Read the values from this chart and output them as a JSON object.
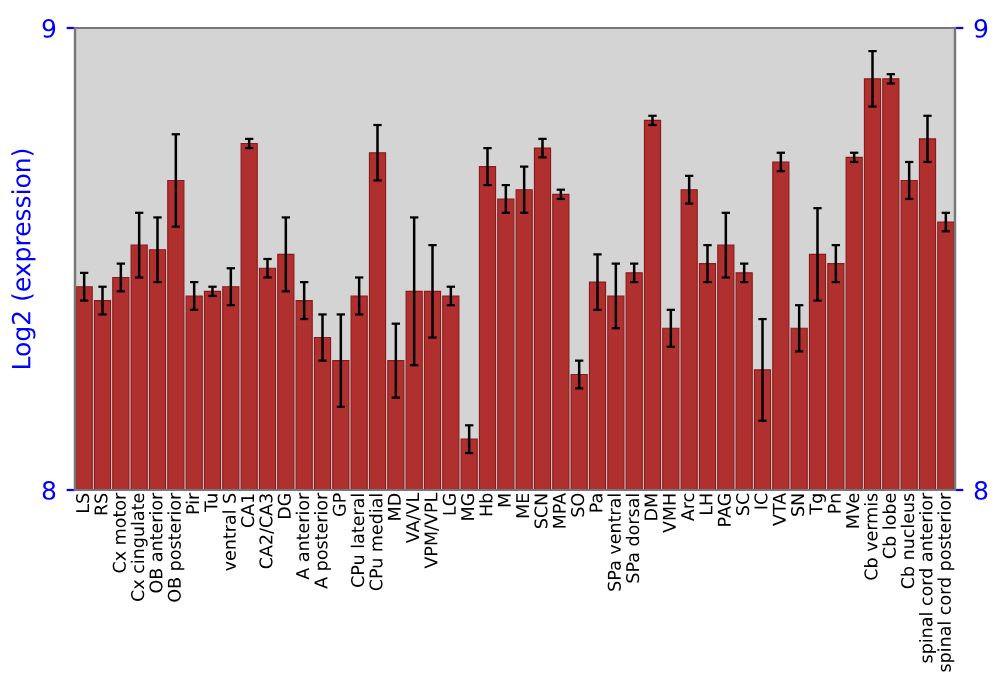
{
  "chart_data": {
    "type": "bar",
    "ylabel": "Log2 (expression)",
    "categories": [
      "LS",
      "RS",
      "Cx motor",
      "Cx cingulate",
      "OB anterior",
      "OB posterior",
      "Pir",
      "Tu",
      "ventral S",
      "CA1",
      "CA2/CA3",
      "DG",
      "A anterior",
      "A posterior",
      "GP",
      "CPu lateral",
      "CPu medial",
      "MD",
      "VA/VL",
      "VPM/VPL",
      "LG",
      "MG",
      "Hb",
      "M",
      "ME",
      "SCN",
      "MPA",
      "SO",
      "Pa",
      "SPa ventral",
      "SPa dorsal",
      "DM",
      "VMH",
      "Arc",
      "LH",
      "PAG",
      "SC",
      "IC",
      "VTA",
      "SN",
      "Tg",
      "Pn",
      "MVe",
      "Cb vermis",
      "Cb lobe",
      "Cb nucleus",
      "spinal cord anterior",
      "spinal cord posterior"
    ],
    "values": [
      8.44,
      8.41,
      8.46,
      8.53,
      8.52,
      8.67,
      8.42,
      8.43,
      8.44,
      8.75,
      8.48,
      8.51,
      8.41,
      8.33,
      8.28,
      8.42,
      8.73,
      8.28,
      8.43,
      8.43,
      8.42,
      8.11,
      8.7,
      8.63,
      8.65,
      8.74,
      8.64,
      8.25,
      8.45,
      8.42,
      8.47,
      8.8,
      8.35,
      8.65,
      8.49,
      8.53,
      8.47,
      8.26,
      8.71,
      8.35,
      8.51,
      8.49,
      8.72,
      8.89,
      8.89,
      8.67,
      8.76,
      8.58
    ],
    "errors": [
      0.03,
      0.03,
      0.03,
      0.07,
      0.07,
      0.1,
      0.03,
      0.01,
      0.04,
      0.01,
      0.02,
      0.08,
      0.04,
      0.05,
      0.1,
      0.04,
      0.06,
      0.08,
      0.16,
      0.1,
      0.02,
      0.03,
      0.04,
      0.03,
      0.05,
      0.02,
      0.01,
      0.03,
      0.06,
      0.07,
      0.02,
      0.01,
      0.04,
      0.03,
      0.04,
      0.07,
      0.02,
      0.11,
      0.02,
      0.05,
      0.1,
      0.04,
      0.01,
      0.06,
      0.01,
      0.04,
      0.05,
      0.02
    ],
    "color": "#b03030",
    "ylim": [
      8,
      9
    ],
    "yticks": [
      8,
      9
    ],
    "y2lim": [
      8,
      9
    ],
    "y2ticks": [
      8,
      9
    ],
    "grid": false
  }
}
